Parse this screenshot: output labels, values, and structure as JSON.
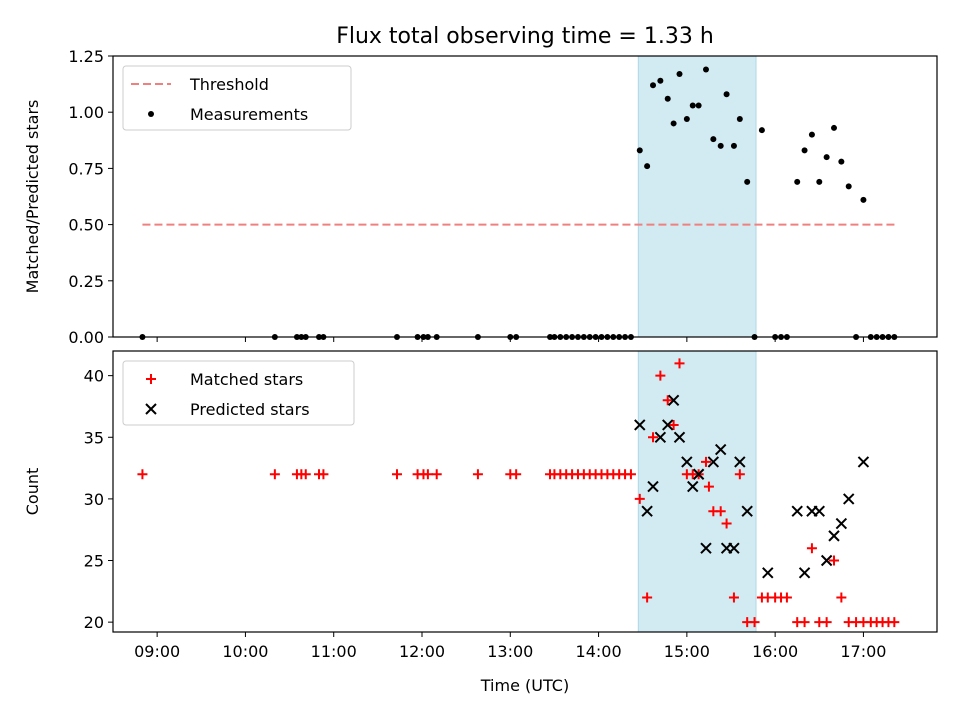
{
  "figure_title": "Flux total observing time = 1.33 h",
  "colors": {
    "threshold": "#f08080",
    "measurement": "#000000",
    "matched": "#ff0000",
    "predicted": "#000000",
    "highlight": "#add8e6"
  },
  "chart_data": [
    {
      "type": "scatter",
      "panel": "top",
      "title": "Flux total observing time = 1.33 h",
      "ylabel": "Matched/Predicted stars",
      "xlabel": "",
      "xlim": [
        "08:30",
        "17:50"
      ],
      "ylim": [
        0,
        1.25
      ],
      "yticks": [
        0.0,
        0.25,
        0.5,
        0.75,
        1.0,
        1.25
      ],
      "yticklabels": [
        "0.00",
        "0.25",
        "0.50",
        "0.75",
        "1.00",
        "1.25"
      ],
      "legend_position": "upper left",
      "legend": [
        "Threshold",
        "Measurements"
      ],
      "highlight_span": [
        "14:27",
        "15:47"
      ],
      "threshold": {
        "name": "Threshold",
        "y": 0.5,
        "x": [
          "08:50",
          "17:22"
        ]
      },
      "series": [
        {
          "name": "Measurements",
          "points": [
            [
              "08:50",
              0
            ],
            [
              "10:20",
              0
            ],
            [
              "10:35",
              0
            ],
            [
              "10:38",
              0
            ],
            [
              "10:41",
              0
            ],
            [
              "10:50",
              0
            ],
            [
              "10:53",
              0
            ],
            [
              "11:43",
              0
            ],
            [
              "11:57",
              0
            ],
            [
              "12:01",
              0
            ],
            [
              "12:04",
              0
            ],
            [
              "12:10",
              0
            ],
            [
              "12:38",
              0
            ],
            [
              "13:00",
              0
            ],
            [
              "13:04",
              0
            ],
            [
              "13:27",
              0
            ],
            [
              "13:30",
              0
            ],
            [
              "13:34",
              0
            ],
            [
              "13:38",
              0
            ],
            [
              "13:42",
              0
            ],
            [
              "13:46",
              0
            ],
            [
              "13:50",
              0
            ],
            [
              "13:54",
              0
            ],
            [
              "13:58",
              0
            ],
            [
              "14:02",
              0
            ],
            [
              "14:06",
              0
            ],
            [
              "14:10",
              0
            ],
            [
              "14:14",
              0
            ],
            [
              "14:18",
              0
            ],
            [
              "14:22",
              0
            ],
            [
              "14:28",
              0.83
            ],
            [
              "14:33",
              0.76
            ],
            [
              "14:37",
              1.12
            ],
            [
              "14:42",
              1.14
            ],
            [
              "14:47",
              1.06
            ],
            [
              "14:51",
              0.95
            ],
            [
              "14:55",
              1.17
            ],
            [
              "15:00",
              0.97
            ],
            [
              "15:04",
              1.03
            ],
            [
              "15:08",
              1.03
            ],
            [
              "15:13",
              1.19
            ],
            [
              "15:18",
              0.88
            ],
            [
              "15:23",
              0.85
            ],
            [
              "15:27",
              1.08
            ],
            [
              "15:32",
              0.85
            ],
            [
              "15:36",
              0.97
            ],
            [
              "15:41",
              0.69
            ],
            [
              "15:46",
              0
            ],
            [
              "15:51",
              0.92
            ],
            [
              "16:00",
              0
            ],
            [
              "16:04",
              0
            ],
            [
              "16:08",
              0
            ],
            [
              "16:15",
              0.69
            ],
            [
              "16:20",
              0.83
            ],
            [
              "16:25",
              0.9
            ],
            [
              "16:30",
              0.69
            ],
            [
              "16:35",
              0.8
            ],
            [
              "16:40",
              0.93
            ],
            [
              "16:45",
              0.78
            ],
            [
              "16:50",
              0.67
            ],
            [
              "16:55",
              0
            ],
            [
              "17:00",
              0.61
            ],
            [
              "17:05",
              0
            ],
            [
              "17:09",
              0
            ],
            [
              "17:13",
              0
            ],
            [
              "17:17",
              0
            ],
            [
              "17:21",
              0
            ]
          ]
        }
      ]
    },
    {
      "type": "scatter",
      "panel": "bottom",
      "title": "",
      "ylabel": "Count",
      "xlabel": "Time (UTC)",
      "xlim": [
        "08:30",
        "17:50"
      ],
      "ylim": [
        19.2,
        42.0
      ],
      "yticks": [
        20,
        25,
        30,
        35,
        40
      ],
      "yticklabels": [
        "20",
        "25",
        "30",
        "35",
        "40"
      ],
      "xticklabels": [
        "09:00",
        "10:00",
        "11:00",
        "12:00",
        "13:00",
        "14:00",
        "15:00",
        "16:00",
        "17:00"
      ],
      "legend_position": "upper left",
      "legend": [
        "Matched stars",
        "Predicted stars"
      ],
      "highlight_span": [
        "14:27",
        "15:47"
      ],
      "series": [
        {
          "name": "Matched stars",
          "marker": "+",
          "points": [
            [
              "08:50",
              32
            ],
            [
              "10:20",
              32
            ],
            [
              "10:35",
              32
            ],
            [
              "10:38",
              32
            ],
            [
              "10:41",
              32
            ],
            [
              "10:50",
              32
            ],
            [
              "10:53",
              32
            ],
            [
              "11:43",
              32
            ],
            [
              "11:57",
              32
            ],
            [
              "12:01",
              32
            ],
            [
              "12:04",
              32
            ],
            [
              "12:10",
              32
            ],
            [
              "12:38",
              32
            ],
            [
              "13:00",
              32
            ],
            [
              "13:04",
              32
            ],
            [
              "13:27",
              32
            ],
            [
              "13:30",
              32
            ],
            [
              "13:34",
              32
            ],
            [
              "13:38",
              32
            ],
            [
              "13:42",
              32
            ],
            [
              "13:46",
              32
            ],
            [
              "13:50",
              32
            ],
            [
              "13:54",
              32
            ],
            [
              "13:58",
              32
            ],
            [
              "14:02",
              32
            ],
            [
              "14:06",
              32
            ],
            [
              "14:10",
              32
            ],
            [
              "14:14",
              32
            ],
            [
              "14:18",
              32
            ],
            [
              "14:22",
              32
            ],
            [
              "14:28",
              30
            ],
            [
              "14:33",
              22
            ],
            [
              "14:37",
              35
            ],
            [
              "14:42",
              40
            ],
            [
              "14:47",
              38
            ],
            [
              "14:51",
              36
            ],
            [
              "14:55",
              41
            ],
            [
              "15:00",
              32
            ],
            [
              "15:04",
              32
            ],
            [
              "15:08",
              32
            ],
            [
              "15:13",
              33
            ],
            [
              "15:15",
              31
            ],
            [
              "15:18",
              29
            ],
            [
              "15:23",
              29
            ],
            [
              "15:27",
              28
            ],
            [
              "15:32",
              22
            ],
            [
              "15:36",
              32
            ],
            [
              "15:41",
              20
            ],
            [
              "15:46",
              20
            ],
            [
              "15:51",
              22
            ],
            [
              "15:55",
              22
            ],
            [
              "16:00",
              22
            ],
            [
              "16:04",
              22
            ],
            [
              "16:08",
              22
            ],
            [
              "16:15",
              20
            ],
            [
              "16:20",
              20
            ],
            [
              "16:25",
              26
            ],
            [
              "16:30",
              20
            ],
            [
              "16:35",
              20
            ],
            [
              "16:40",
              25
            ],
            [
              "16:45",
              22
            ],
            [
              "16:50",
              20
            ],
            [
              "16:55",
              20
            ],
            [
              "17:00",
              20
            ],
            [
              "17:05",
              20
            ],
            [
              "17:09",
              20
            ],
            [
              "17:13",
              20
            ],
            [
              "17:17",
              20
            ],
            [
              "17:21",
              20
            ]
          ]
        },
        {
          "name": "Predicted stars",
          "marker": "x",
          "points": [
            [
              "14:28",
              36
            ],
            [
              "14:33",
              29
            ],
            [
              "14:37",
              31
            ],
            [
              "14:42",
              35
            ],
            [
              "14:47",
              36
            ],
            [
              "14:51",
              38
            ],
            [
              "14:55",
              35
            ],
            [
              "15:00",
              33
            ],
            [
              "15:04",
              31
            ],
            [
              "15:08",
              32
            ],
            [
              "15:13",
              26
            ],
            [
              "15:18",
              33
            ],
            [
              "15:23",
              34
            ],
            [
              "15:27",
              26
            ],
            [
              "15:32",
              26
            ],
            [
              "15:36",
              33
            ],
            [
              "15:41",
              29
            ],
            [
              "15:55",
              24
            ],
            [
              "16:15",
              29
            ],
            [
              "16:20",
              24
            ],
            [
              "16:25",
              29
            ],
            [
              "16:30",
              29
            ],
            [
              "16:35",
              25
            ],
            [
              "16:40",
              27
            ],
            [
              "16:45",
              28
            ],
            [
              "16:50",
              30
            ],
            [
              "17:00",
              33
            ]
          ]
        }
      ]
    }
  ]
}
